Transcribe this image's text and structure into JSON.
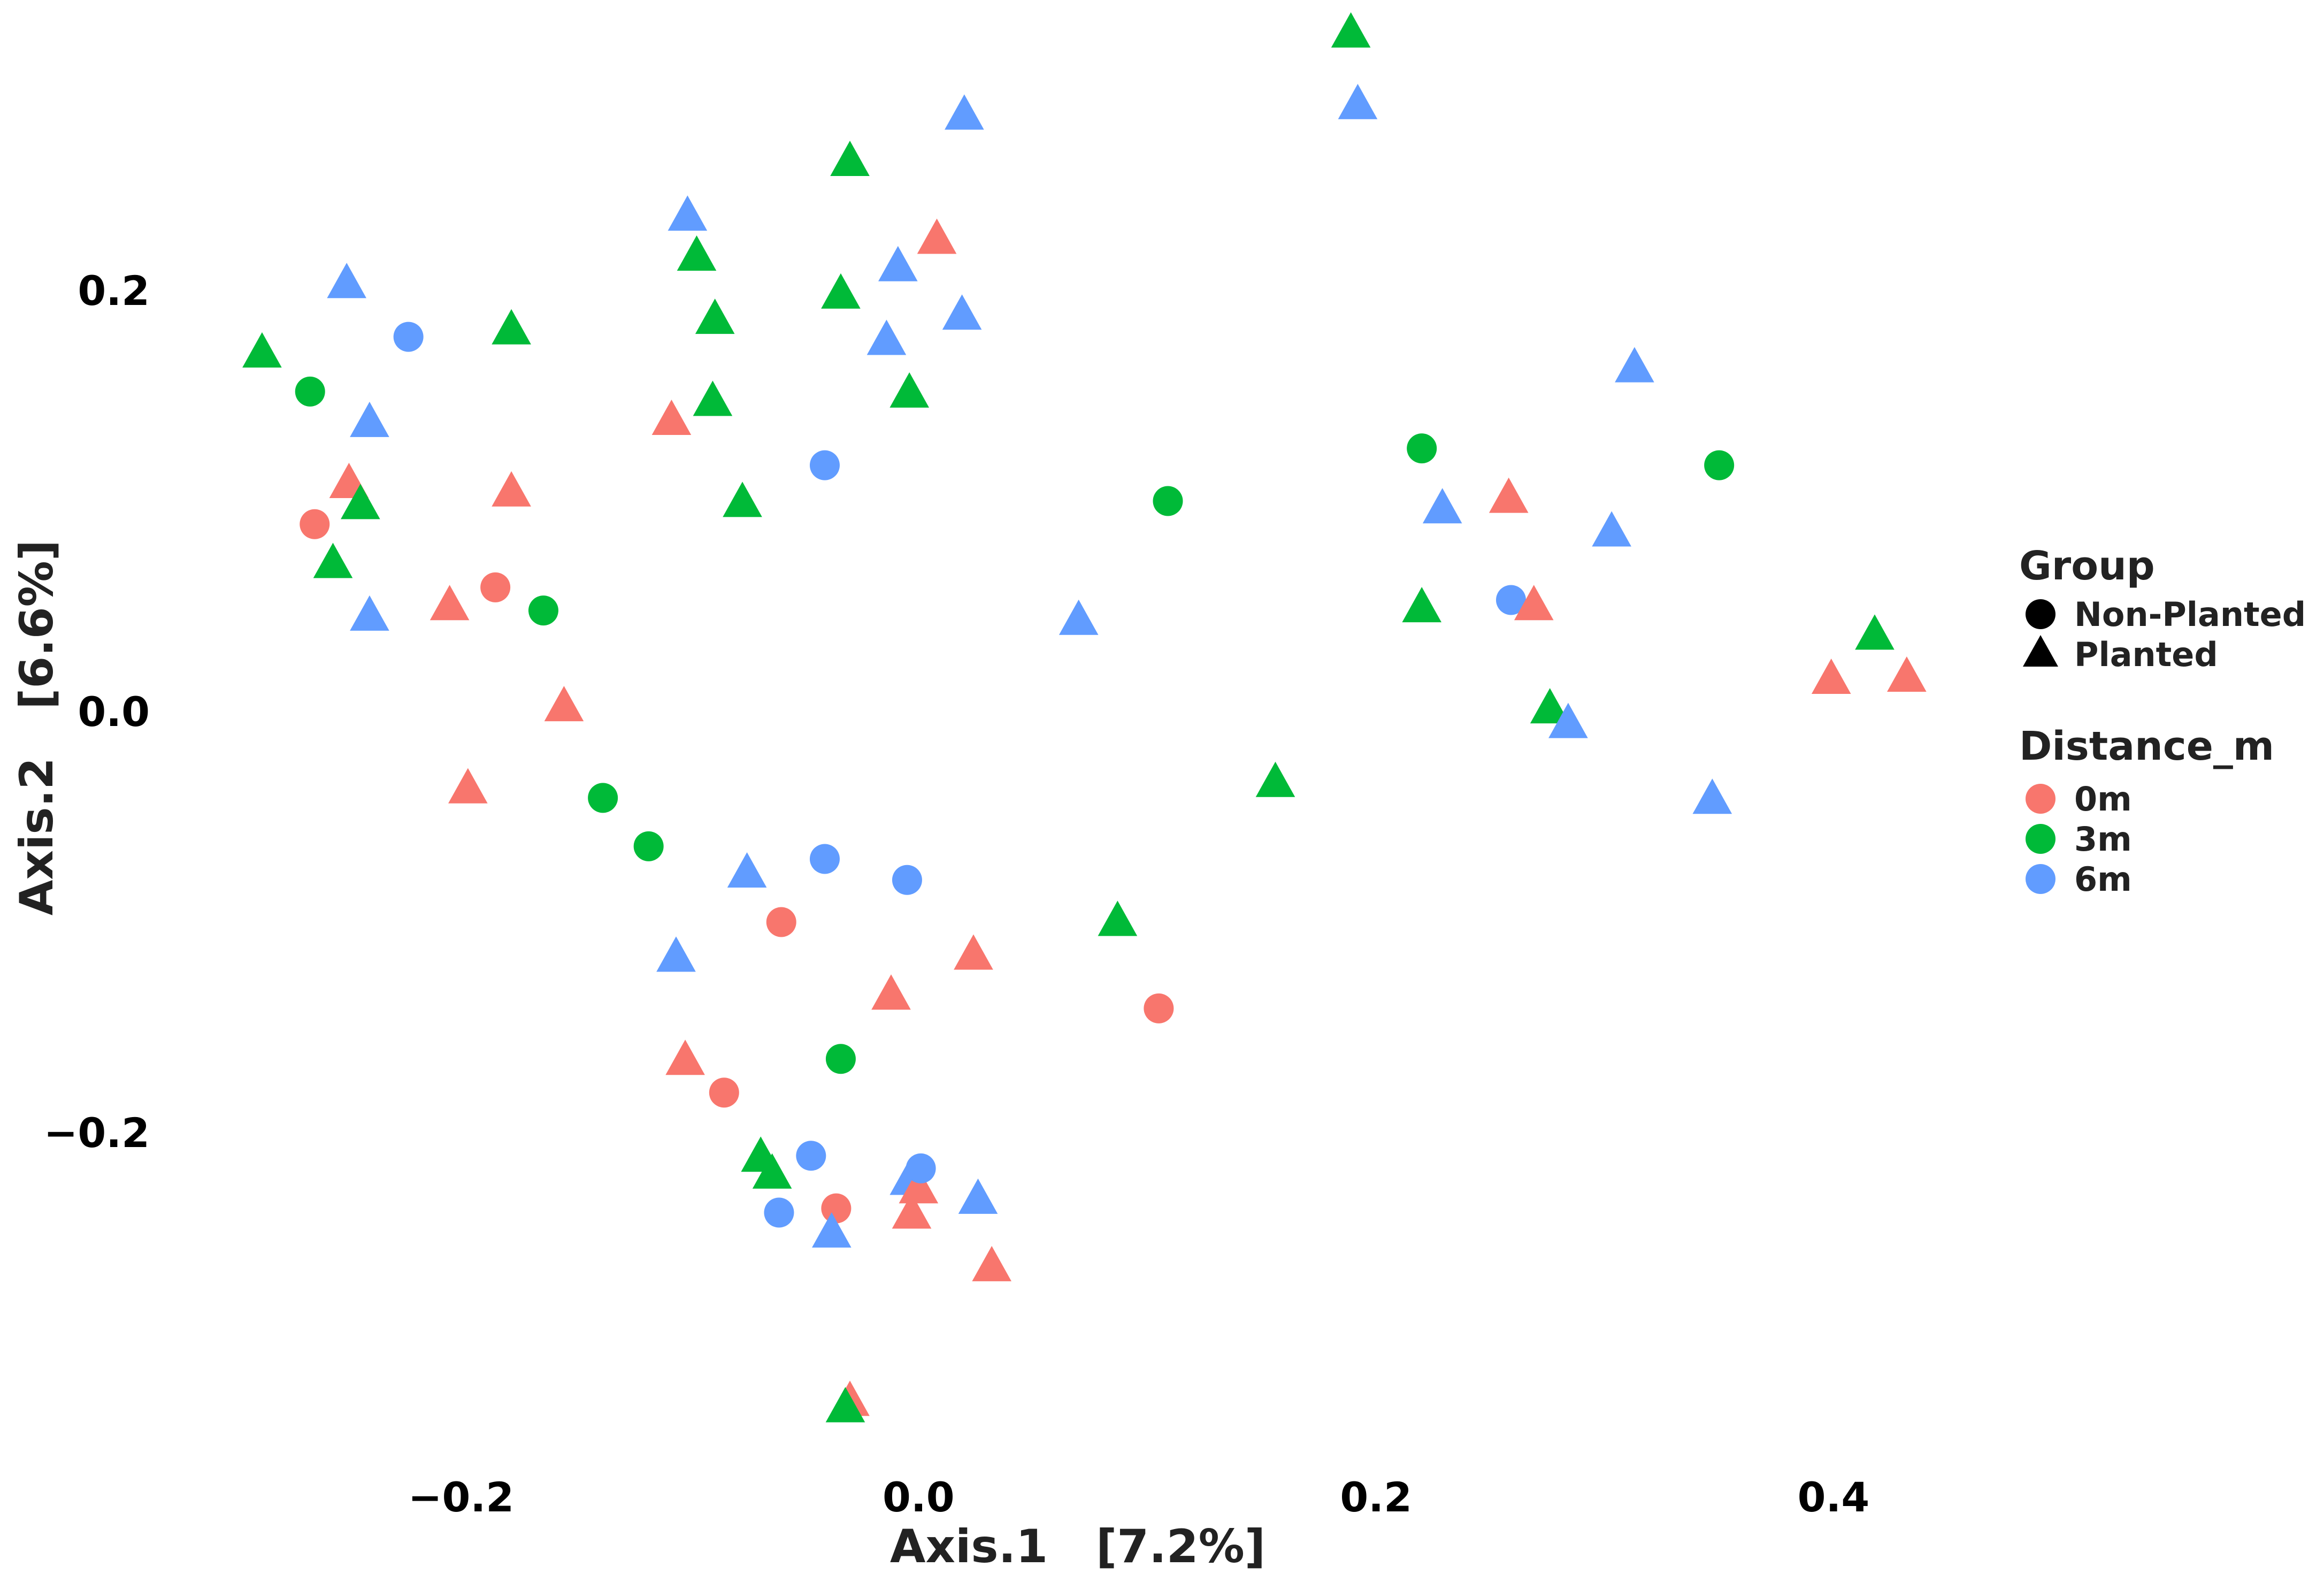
{
  "chart_data": {
    "type": "scatter",
    "xlabel": "Axis.1   [7.2%]",
    "ylabel": "Axis.2   [6.6%]",
    "xlim": [
      -0.3,
      0.62
    ],
    "ylim": [
      -0.345,
      0.33
    ],
    "xticks": [
      {
        "value": -0.2,
        "label": "−0.2"
      },
      {
        "value": 0.0,
        "label": "0.0"
      },
      {
        "value": 0.2,
        "label": "0.2"
      },
      {
        "value": 0.4,
        "label": "0.4"
      }
    ],
    "yticks": [
      {
        "value": 0.2,
        "label": "0.2"
      },
      {
        "value": 0.0,
        "label": "0.0"
      },
      {
        "value": -0.2,
        "label": "−0.2"
      }
    ],
    "grid": false,
    "legend": {
      "placement": "right",
      "shape_title": "Group",
      "shape_items": [
        {
          "shape": "circle",
          "label": "Non-Planted"
        },
        {
          "shape": "triangle",
          "label": "Planted"
        }
      ],
      "color_title": "Distance_m",
      "color_items": [
        {
          "key": "0m",
          "label": "0m",
          "color": "#F8766D"
        },
        {
          "key": "3m",
          "label": "3m",
          "color": "#00BA38"
        },
        {
          "key": "6m",
          "label": "6m",
          "color": "#619CFF"
        }
      ]
    },
    "points": [
      {
        "x": -0.287,
        "y": 0.17,
        "group": "Planted",
        "distance": "3m"
      },
      {
        "x": -0.266,
        "y": 0.152,
        "group": "Non-Planted",
        "distance": "3m"
      },
      {
        "x": -0.264,
        "y": 0.089,
        "group": "Non-Planted",
        "distance": "0m"
      },
      {
        "x": -0.249,
        "y": 0.108,
        "group": "Planted",
        "distance": "0m"
      },
      {
        "x": -0.25,
        "y": 0.203,
        "group": "Planted",
        "distance": "6m"
      },
      {
        "x": -0.244,
        "y": 0.098,
        "group": "Planted",
        "distance": "3m"
      },
      {
        "x": -0.256,
        "y": 0.07,
        "group": "Planted",
        "distance": "3m"
      },
      {
        "x": -0.24,
        "y": 0.137,
        "group": "Planted",
        "distance": "6m"
      },
      {
        "x": -0.24,
        "y": 0.045,
        "group": "Planted",
        "distance": "6m"
      },
      {
        "x": -0.223,
        "y": 0.178,
        "group": "Non-Planted",
        "distance": "6m"
      },
      {
        "x": -0.205,
        "y": 0.05,
        "group": "Planted",
        "distance": "0m"
      },
      {
        "x": -0.185,
        "y": 0.059,
        "group": "Non-Planted",
        "distance": "0m"
      },
      {
        "x": -0.178,
        "y": 0.181,
        "group": "Planted",
        "distance": "3m"
      },
      {
        "x": -0.178,
        "y": 0.104,
        "group": "Planted",
        "distance": "0m"
      },
      {
        "x": -0.164,
        "y": 0.048,
        "group": "Non-Planted",
        "distance": "3m"
      },
      {
        "x": -0.155,
        "y": 0.002,
        "group": "Planted",
        "distance": "0m"
      },
      {
        "x": -0.197,
        "y": -0.037,
        "group": "Planted",
        "distance": "0m"
      },
      {
        "x": -0.138,
        "y": -0.041,
        "group": "Non-Planted",
        "distance": "3m"
      },
      {
        "x": -0.118,
        "y": -0.064,
        "group": "Non-Planted",
        "distance": "3m"
      },
      {
        "x": -0.108,
        "y": 0.138,
        "group": "Planted",
        "distance": "0m"
      },
      {
        "x": -0.101,
        "y": 0.235,
        "group": "Planted",
        "distance": "6m"
      },
      {
        "x": -0.097,
        "y": 0.216,
        "group": "Planted",
        "distance": "3m"
      },
      {
        "x": -0.089,
        "y": 0.186,
        "group": "Planted",
        "distance": "3m"
      },
      {
        "x": -0.09,
        "y": 0.147,
        "group": "Planted",
        "distance": "3m"
      },
      {
        "x": -0.077,
        "y": 0.099,
        "group": "Planted",
        "distance": "3m"
      },
      {
        "x": -0.106,
        "y": -0.117,
        "group": "Planted",
        "distance": "6m"
      },
      {
        "x": -0.102,
        "y": -0.166,
        "group": "Planted",
        "distance": "0m"
      },
      {
        "x": -0.085,
        "y": -0.181,
        "group": "Non-Planted",
        "distance": "0m"
      },
      {
        "x": -0.075,
        "y": -0.077,
        "group": "Planted",
        "distance": "6m"
      },
      {
        "x": -0.06,
        "y": -0.1,
        "group": "Non-Planted",
        "distance": "0m"
      },
      {
        "x": -0.069,
        "y": -0.212,
        "group": "Planted",
        "distance": "3m"
      },
      {
        "x": -0.064,
        "y": -0.22,
        "group": "Planted",
        "distance": "3m"
      },
      {
        "x": -0.061,
        "y": -0.238,
        "group": "Non-Planted",
        "distance": "6m"
      },
      {
        "x": -0.047,
        "y": -0.211,
        "group": "Non-Planted",
        "distance": "6m"
      },
      {
        "x": -0.041,
        "y": 0.117,
        "group": "Non-Planted",
        "distance": "6m"
      },
      {
        "x": -0.041,
        "y": -0.07,
        "group": "Non-Planted",
        "distance": "6m"
      },
      {
        "x": -0.036,
        "y": -0.236,
        "group": "Non-Planted",
        "distance": "0m"
      },
      {
        "x": -0.038,
        "y": -0.248,
        "group": "Planted",
        "distance": "6m"
      },
      {
        "x": -0.034,
        "y": -0.165,
        "group": "Non-Planted",
        "distance": "3m"
      },
      {
        "x": -0.03,
        "y": 0.261,
        "group": "Planted",
        "distance": "3m"
      },
      {
        "x": -0.034,
        "y": 0.198,
        "group": "Planted",
        "distance": "3m"
      },
      {
        "x": -0.03,
        "y": -0.328,
        "group": "Planted",
        "distance": "0m"
      },
      {
        "x": -0.032,
        "y": -0.331,
        "group": "Planted",
        "distance": "3m"
      },
      {
        "x": -0.014,
        "y": 0.176,
        "group": "Planted",
        "distance": "6m"
      },
      {
        "x": -0.009,
        "y": 0.211,
        "group": "Planted",
        "distance": "6m"
      },
      {
        "x": -0.012,
        "y": -0.135,
        "group": "Planted",
        "distance": "0m"
      },
      {
        "x": -0.004,
        "y": 0.151,
        "group": "Planted",
        "distance": "3m"
      },
      {
        "x": -0.005,
        "y": -0.08,
        "group": "Non-Planted",
        "distance": "6m"
      },
      {
        "x": -0.004,
        "y": -0.223,
        "group": "Planted",
        "distance": "6m"
      },
      {
        "x": -0.003,
        "y": -0.239,
        "group": "Planted",
        "distance": "0m"
      },
      {
        "x": 0.0,
        "y": -0.227,
        "group": "Planted",
        "distance": "0m"
      },
      {
        "x": 0.001,
        "y": -0.217,
        "group": "Non-Planted",
        "distance": "6m"
      },
      {
        "x": 0.008,
        "y": 0.224,
        "group": "Planted",
        "distance": "0m"
      },
      {
        "x": 0.02,
        "y": 0.283,
        "group": "Planted",
        "distance": "6m"
      },
      {
        "x": 0.019,
        "y": 0.188,
        "group": "Planted",
        "distance": "6m"
      },
      {
        "x": 0.024,
        "y": -0.116,
        "group": "Planted",
        "distance": "0m"
      },
      {
        "x": 0.026,
        "y": -0.232,
        "group": "Planted",
        "distance": "6m"
      },
      {
        "x": 0.032,
        "y": -0.264,
        "group": "Planted",
        "distance": "0m"
      },
      {
        "x": 0.07,
        "y": 0.043,
        "group": "Planted",
        "distance": "6m"
      },
      {
        "x": 0.087,
        "y": -0.1,
        "group": "Planted",
        "distance": "3m"
      },
      {
        "x": 0.105,
        "y": -0.141,
        "group": "Non-Planted",
        "distance": "0m"
      },
      {
        "x": 0.109,
        "y": 0.1,
        "group": "Non-Planted",
        "distance": "3m"
      },
      {
        "x": 0.156,
        "y": -0.034,
        "group": "Planted",
        "distance": "3m"
      },
      {
        "x": 0.189,
        "y": 0.322,
        "group": "Planted",
        "distance": "3m"
      },
      {
        "x": 0.192,
        "y": 0.288,
        "group": "Planted",
        "distance": "6m"
      },
      {
        "x": 0.22,
        "y": 0.125,
        "group": "Non-Planted",
        "distance": "3m"
      },
      {
        "x": 0.22,
        "y": 0.049,
        "group": "Planted",
        "distance": "3m"
      },
      {
        "x": 0.229,
        "y": 0.096,
        "group": "Planted",
        "distance": "6m"
      },
      {
        "x": 0.258,
        "y": 0.101,
        "group": "Planted",
        "distance": "0m"
      },
      {
        "x": 0.259,
        "y": 0.053,
        "group": "Non-Planted",
        "distance": "6m"
      },
      {
        "x": 0.269,
        "y": 0.05,
        "group": "Planted",
        "distance": "0m"
      },
      {
        "x": 0.276,
        "y": 0.001,
        "group": "Planted",
        "distance": "3m"
      },
      {
        "x": 0.284,
        "y": -0.006,
        "group": "Planted",
        "distance": "6m"
      },
      {
        "x": 0.303,
        "y": 0.085,
        "group": "Planted",
        "distance": "6m"
      },
      {
        "x": 0.313,
        "y": 0.163,
        "group": "Planted",
        "distance": "6m"
      },
      {
        "x": 0.35,
        "y": 0.117,
        "group": "Non-Planted",
        "distance": "3m"
      },
      {
        "x": 0.347,
        "y": -0.042,
        "group": "Planted",
        "distance": "6m"
      },
      {
        "x": 0.399,
        "y": 0.015,
        "group": "Planted",
        "distance": "0m"
      },
      {
        "x": 0.418,
        "y": 0.036,
        "group": "Planted",
        "distance": "3m"
      },
      {
        "x": 0.432,
        "y": 0.016,
        "group": "Planted",
        "distance": "0m"
      }
    ]
  }
}
